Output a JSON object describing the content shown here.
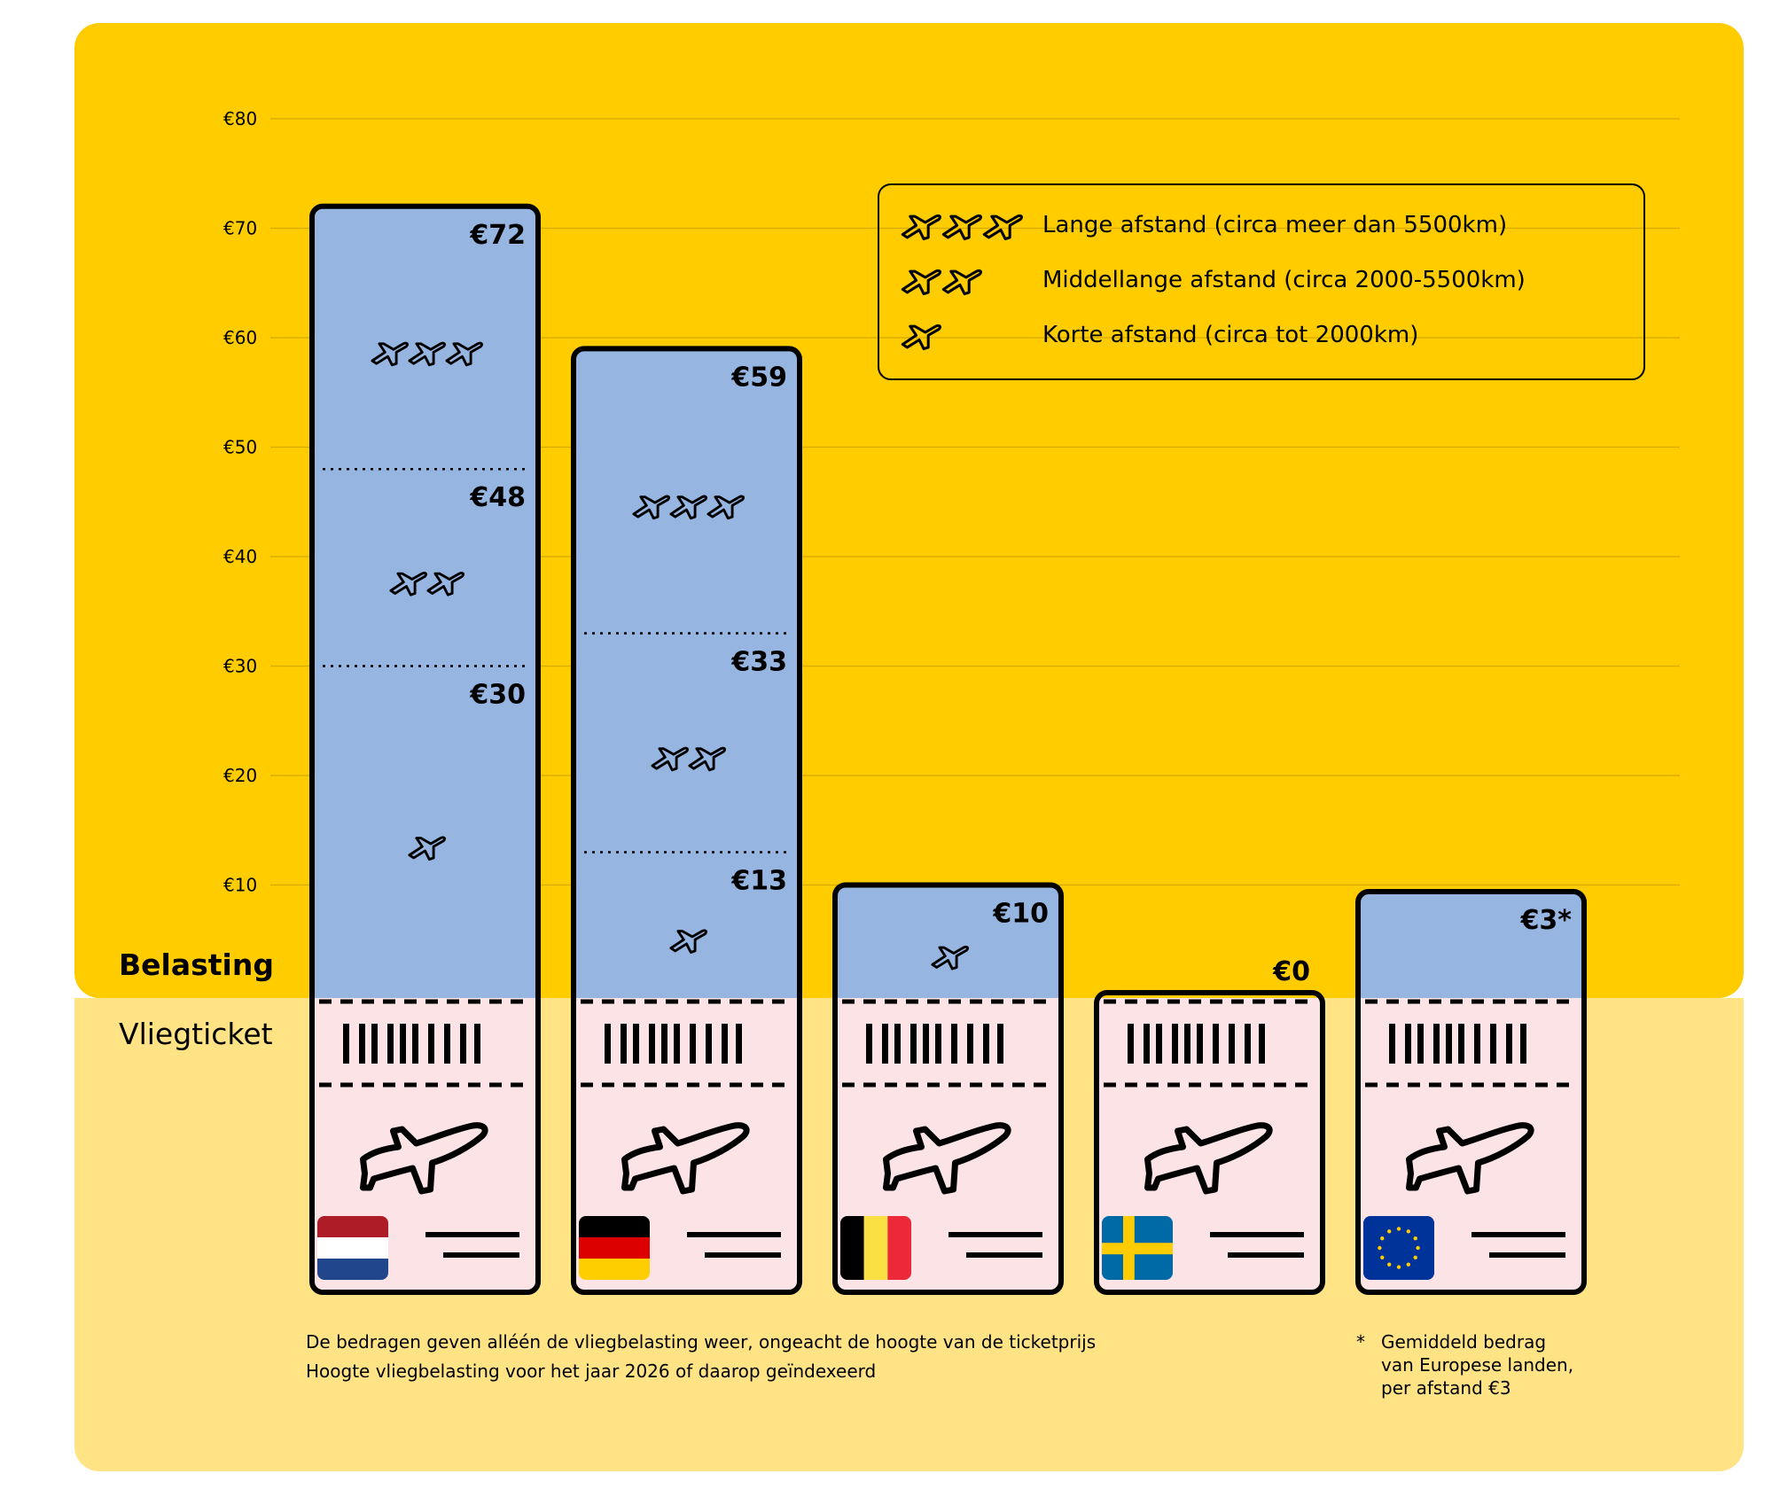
{
  "colors": {
    "background_top": "#FFCC00",
    "background_bottom": "#FFE385",
    "bar_fill": "#96B5E0",
    "ticket_fill": "#FCE4E6",
    "outline": "#000000"
  },
  "row_labels": {
    "tax": "Belasting",
    "ticket": "Vliegticket"
  },
  "legend": [
    {
      "planes": 3,
      "label": "Lange afstand (circa meer dan 5500km)"
    },
    {
      "planes": 2,
      "label": "Middellange afstand (circa 2000-5500km)"
    },
    {
      "planes": 1,
      "label": "Korte afstand (circa tot 2000km)"
    }
  ],
  "footnotes": {
    "line1": "De bedragen geven alléén de vliegbelasting weer, ongeacht de hoogte van de ticketprijs",
    "line2": "Hoogte vliegbelasting voor het jaar 2026 of daarop geïndexeerd",
    "star_marker": "*",
    "star_note": [
      "Gemiddeld bedrag",
      "van Europese landen,",
      "per afstand €3"
    ]
  },
  "chart_data": {
    "type": "bar",
    "ylim": [
      0,
      80
    ],
    "y_ticks": [
      "€10",
      "€20",
      "€30",
      "€40",
      "€50",
      "€60",
      "€70",
      "€80"
    ],
    "y_tick_values": [
      10,
      20,
      30,
      40,
      50,
      60,
      70,
      80
    ],
    "grid": true,
    "legend_position": "top-right",
    "categories": [
      {
        "flag": "netherlands",
        "segments": [
          {
            "planes": 1,
            "value": 30,
            "label": "€30"
          },
          {
            "planes": 2,
            "value": 48,
            "label": "€48"
          },
          {
            "planes": 3,
            "value": 72,
            "label": "€72"
          }
        ]
      },
      {
        "flag": "germany",
        "segments": [
          {
            "planes": 1,
            "value": 13,
            "label": "€13"
          },
          {
            "planes": 2,
            "value": 33,
            "label": "€33"
          },
          {
            "planes": 3,
            "value": 59,
            "label": "€59"
          }
        ]
      },
      {
        "flag": "belgium",
        "segments": [
          {
            "planes": 1,
            "value": 10,
            "label": "€10"
          }
        ]
      },
      {
        "flag": "sweden",
        "segments": [
          {
            "planes": 0,
            "value": 0,
            "label": "€0"
          }
        ]
      },
      {
        "flag": "european-union",
        "segments": [
          {
            "planes": 0,
            "value": 3,
            "label": "€3*"
          }
        ]
      }
    ]
  }
}
